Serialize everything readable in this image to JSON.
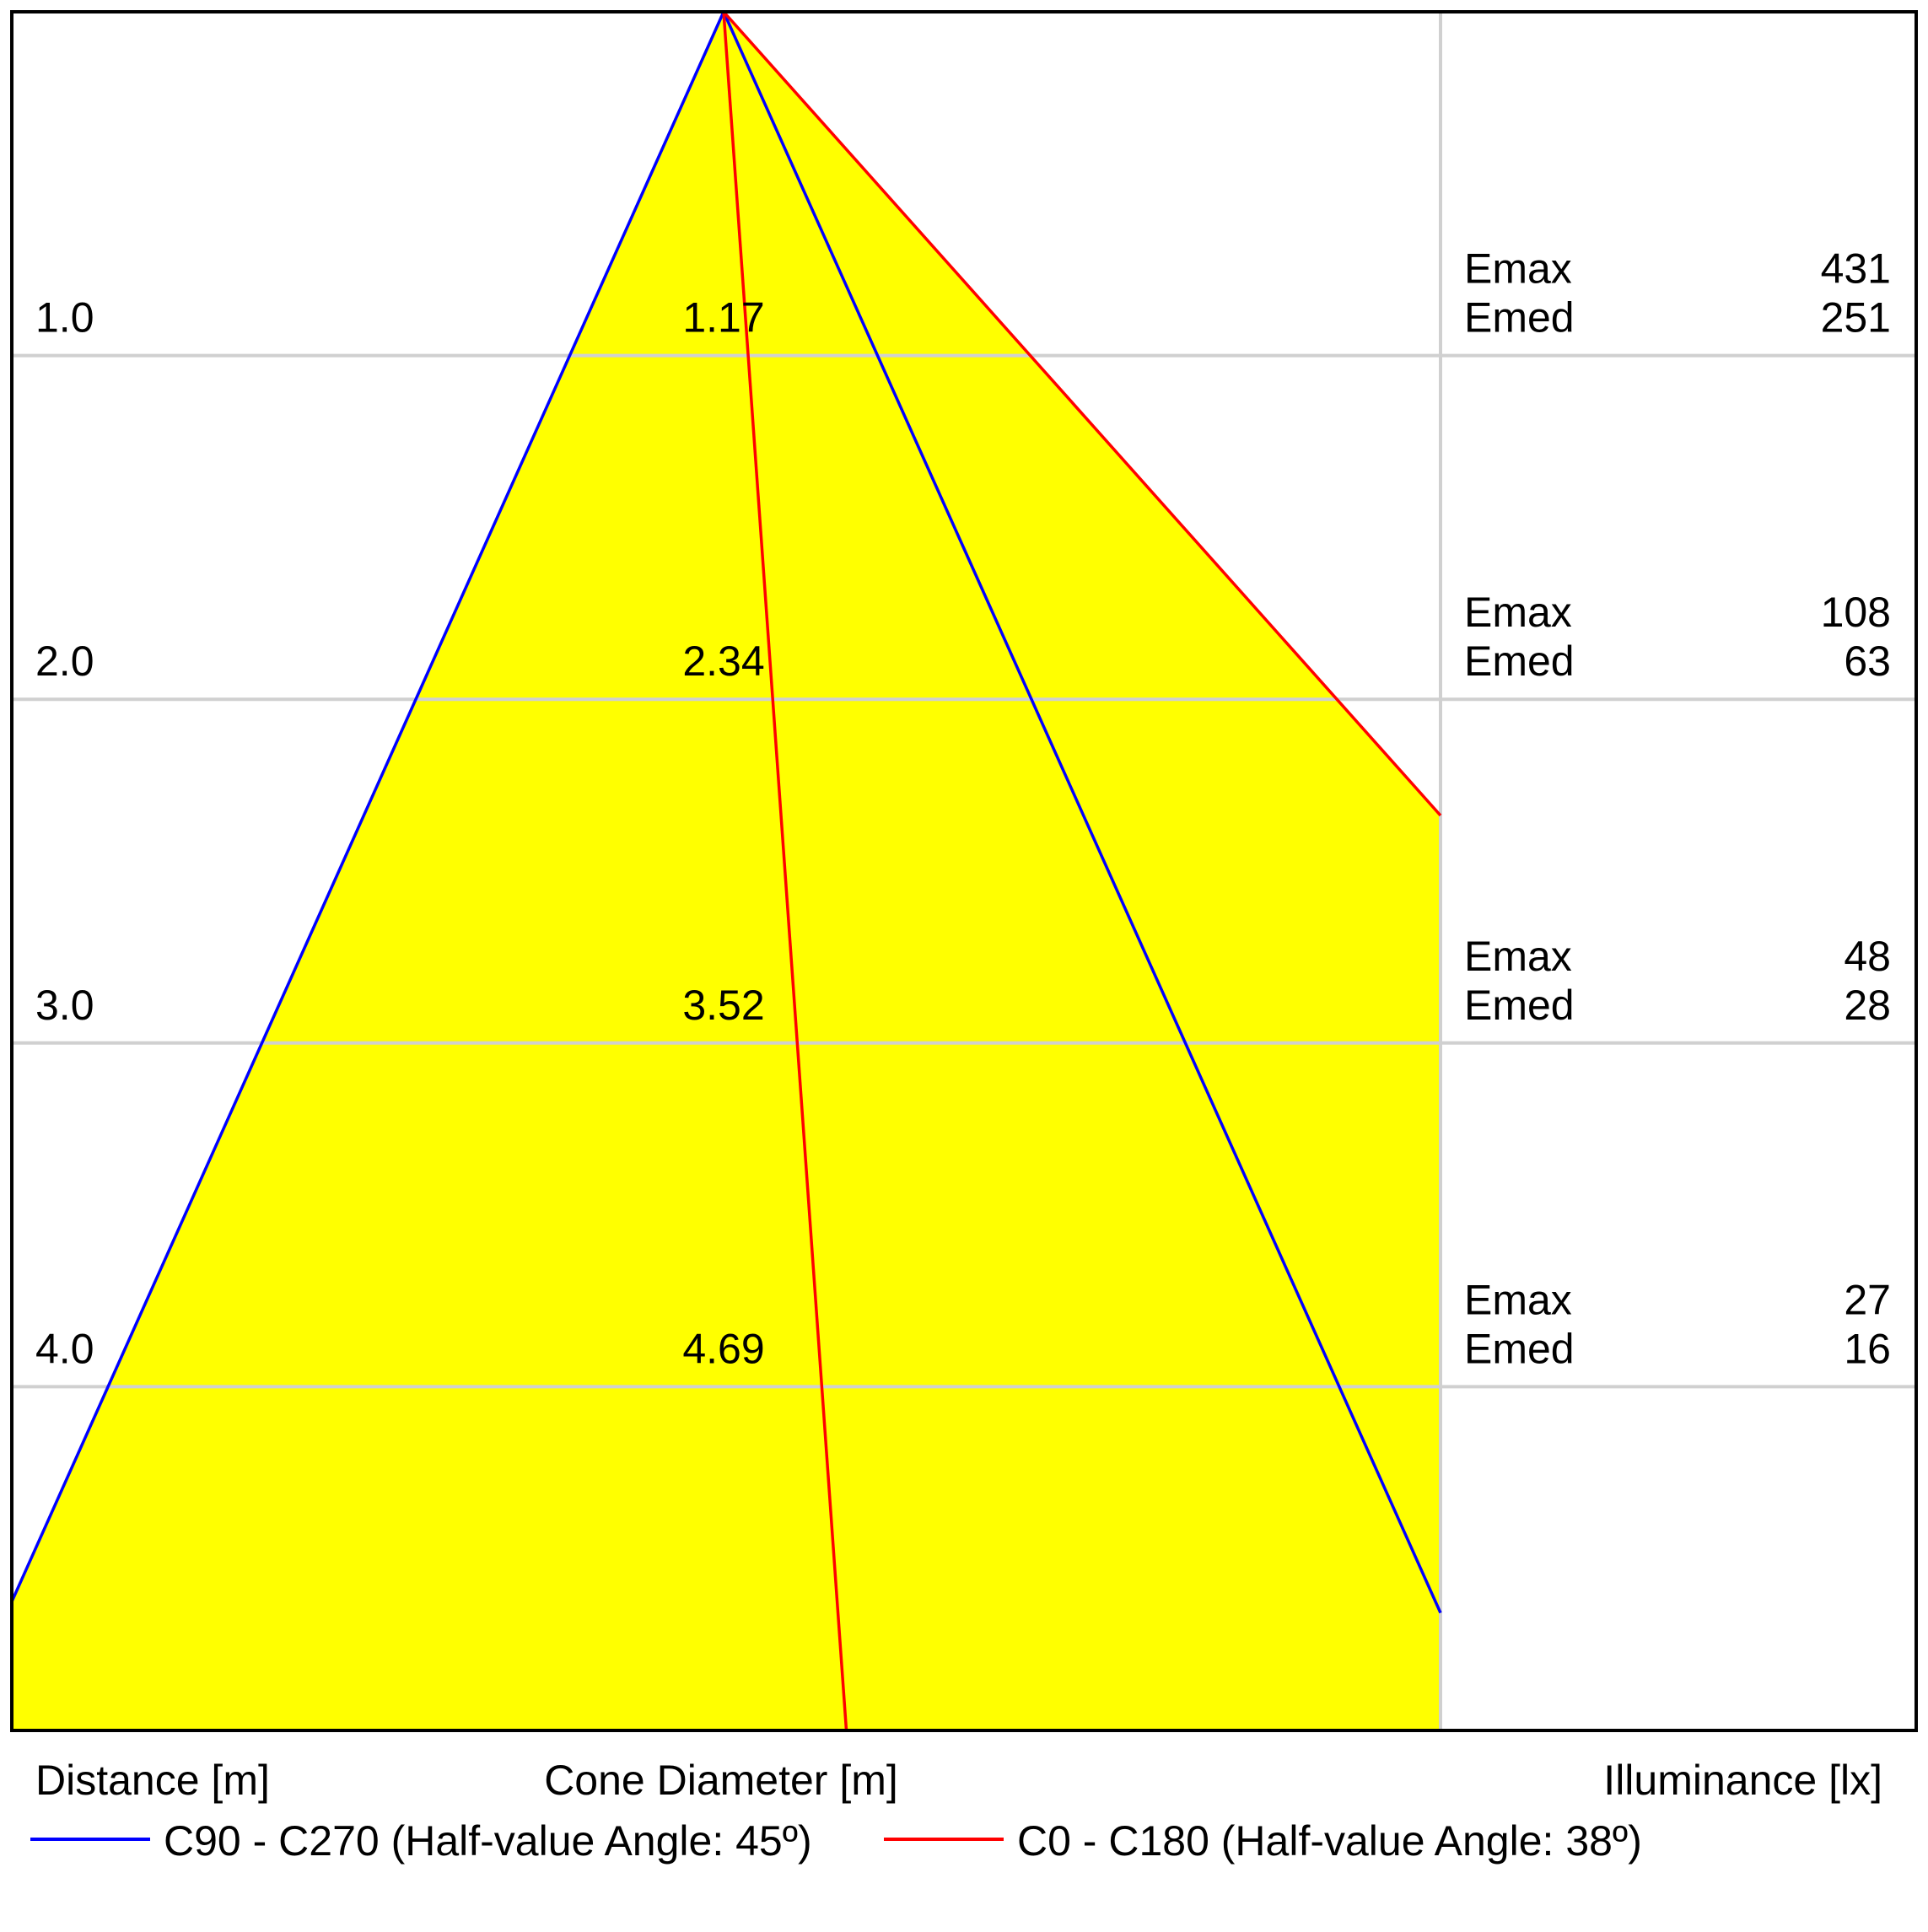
{
  "colors": {
    "cone_fill": "#ffff00",
    "c90_line": "#0000ff",
    "c0_line": "#ff0000",
    "grid": "#d0d0d0",
    "frame": "#000000",
    "text": "#000000"
  },
  "chart_data": {
    "type": "cone-diagram",
    "rows": [
      {
        "distance": "1.0",
        "cone_diameter": "1.17",
        "emax": "431",
        "emed": "251"
      },
      {
        "distance": "2.0",
        "cone_diameter": "2.34",
        "emax": "108",
        "emed": "63"
      },
      {
        "distance": "3.0",
        "cone_diameter": "3.52",
        "emax": "48",
        "emed": "28"
      },
      {
        "distance": "4.0",
        "cone_diameter": "4.69",
        "emax": "27",
        "emed": "16"
      }
    ],
    "emax_label": "Emax",
    "emed_label": "Emed",
    "axis_labels": {
      "distance": "Distance [m]",
      "cone_diameter": "Cone Diameter [m]",
      "illuminance": "Illuminance [lx]"
    },
    "distance_range": [
      0,
      5
    ],
    "half_value_angles_deg": {
      "c90_c270": 45,
      "c0_c180": 38
    },
    "series": [
      {
        "name": "C90 - C270 (Half-value Angle: 45º)",
        "color": "#0000ff",
        "half_angle": 45
      },
      {
        "name": "C0 - C180 (Half-value Angle: 38º)",
        "color": "#ff0000",
        "half_angle": 38
      }
    ],
    "grid": true,
    "legend_position": "bottom"
  }
}
